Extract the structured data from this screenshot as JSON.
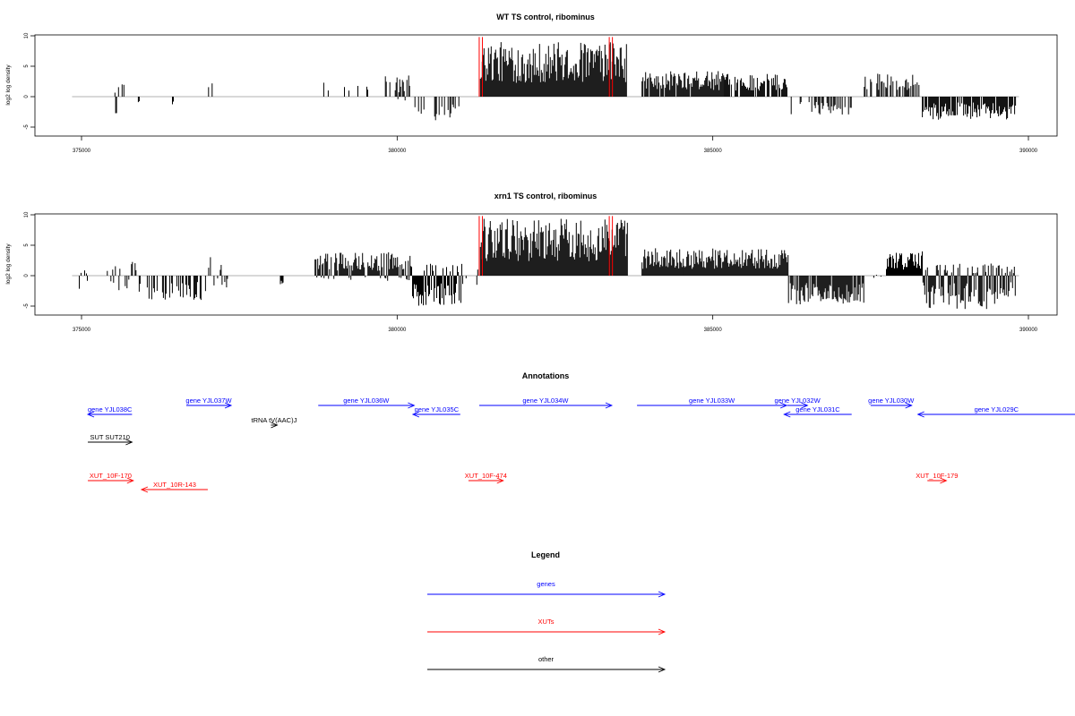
{
  "colors": {
    "genes": "#0000ff",
    "xuts": "#ff0000",
    "other": "#000000",
    "bars": "#000000",
    "marker": "#ff0000",
    "baseline": "#999999"
  },
  "chart_data": [
    {
      "type": "bar",
      "title": "WT TS control, ribominus",
      "ylabel": "log2 log density",
      "xlim": [
        374600,
        390900
      ],
      "ylim": [
        -6,
        10
      ],
      "xticks": [
        375000,
        380000,
        385000,
        390000
      ],
      "yticks": [
        10,
        5,
        0,
        -5
      ],
      "marker_positions": [
        381300,
        381350,
        383360,
        383410
      ],
      "segments": [
        {
          "from": 375530,
          "to": 375690,
          "lo": 0,
          "hi": 2.5,
          "dens": 0.15
        },
        {
          "from": 375540,
          "to": 375560,
          "lo": -2.8,
          "hi": 0,
          "dens": 1
        },
        {
          "from": 375900,
          "to": 375920,
          "lo": -1.2,
          "hi": 0,
          "dens": 1
        },
        {
          "from": 376440,
          "to": 376460,
          "lo": -2.2,
          "hi": 0,
          "dens": 1
        },
        {
          "from": 376970,
          "to": 377370,
          "lo": 0,
          "hi": 2.6,
          "dens": 0.08
        },
        {
          "from": 378780,
          "to": 379080,
          "lo": 0,
          "hi": 3.0,
          "dens": 0.2
        },
        {
          "from": 379080,
          "to": 379800,
          "lo": 0,
          "hi": 2.2,
          "dens": 0.1
        },
        {
          "from": 379800,
          "to": 380230,
          "lo": -1.5,
          "hi": 3.5,
          "dens": 0.4
        },
        {
          "from": 380240,
          "to": 381020,
          "lo": -4.3,
          "hi": 0,
          "dens": 0.35
        },
        {
          "from": 381320,
          "to": 383640,
          "lo": 0,
          "hi": 9,
          "dens": 1
        },
        {
          "from": 383880,
          "to": 385180,
          "lo": 0,
          "hi": 4.2,
          "dens": 0.9
        },
        {
          "from": 385180,
          "to": 386180,
          "lo": 0,
          "hi": 3.8,
          "dens": 0.9
        },
        {
          "from": 386200,
          "to": 387200,
          "lo": -3.0,
          "hi": 0,
          "dens": 0.35
        },
        {
          "from": 387400,
          "to": 388320,
          "lo": 0,
          "hi": 3.8,
          "dens": 0.45
        },
        {
          "from": 388320,
          "to": 389800,
          "lo": -3.8,
          "hi": 0,
          "dens": 0.85
        }
      ]
    },
    {
      "type": "bar",
      "title": "xrn1 TS control, ribominus",
      "ylabel": "log2 log density",
      "xlim": [
        374600,
        390900
      ],
      "ylim": [
        -6,
        10
      ],
      "xticks": [
        375000,
        380000,
        385000,
        390000
      ],
      "yticks": [
        10,
        5,
        0,
        -5
      ],
      "marker_positions": [
        381300,
        381350,
        383360,
        383410
      ],
      "segments": [
        {
          "from": 374950,
          "to": 375100,
          "lo": -2.2,
          "hi": 1.2,
          "dens": 0.2
        },
        {
          "from": 375380,
          "to": 375900,
          "lo": -2.5,
          "hi": 2.8,
          "dens": 0.35
        },
        {
          "from": 375900,
          "to": 377000,
          "lo": -4.0,
          "hi": 0,
          "dens": 0.45
        },
        {
          "from": 377000,
          "to": 377350,
          "lo": -2.3,
          "hi": 3.2,
          "dens": 0.5
        },
        {
          "from": 378150,
          "to": 378200,
          "lo": -2.0,
          "hi": 0,
          "dens": 1
        },
        {
          "from": 378700,
          "to": 380230,
          "lo": -1.0,
          "hi": 4.0,
          "dens": 0.95
        },
        {
          "from": 380230,
          "to": 381050,
          "lo": -5.0,
          "hi": 2.0,
          "dens": 0.95
        },
        {
          "from": 381050,
          "to": 381320,
          "lo": -2.0,
          "hi": 3.5,
          "dens": 0.3
        },
        {
          "from": 381320,
          "to": 383650,
          "lo": 0,
          "hi": 9.5,
          "dens": 1
        },
        {
          "from": 383880,
          "to": 386200,
          "lo": 0,
          "hi": 4.5,
          "dens": 1
        },
        {
          "from": 386200,
          "to": 387400,
          "lo": -4.8,
          "hi": 0,
          "dens": 0.9
        },
        {
          "from": 387550,
          "to": 387700,
          "lo": -0.5,
          "hi": 0.5,
          "dens": 0.3
        },
        {
          "from": 387750,
          "to": 388330,
          "lo": 0,
          "hi": 4.0,
          "dens": 1
        },
        {
          "from": 388330,
          "to": 389800,
          "lo": -5.5,
          "hi": 2.0,
          "dens": 1
        }
      ]
    }
  ],
  "annotations": {
    "title": "Annotations",
    "items": [
      {
        "label": "gene YJL038C",
        "start": 375800,
        "end": 375100,
        "type": "gene",
        "row": 2
      },
      {
        "label": "gene YJL037W",
        "start": 376660,
        "end": 377370,
        "type": "gene",
        "row": 1
      },
      {
        "label": "tRNA tV(AAC)J",
        "start": 378000,
        "end": 378100,
        "type": "other",
        "row": 3
      },
      {
        "label": "gene YJL036W",
        "start": 378750,
        "end": 380270,
        "type": "gene",
        "row": 1
      },
      {
        "label": "gene YJL035C",
        "start": 381000,
        "end": 380250,
        "type": "gene",
        "row": 2
      },
      {
        "label": "gene YJL034W",
        "start": 381300,
        "end": 383400,
        "type": "gene",
        "row": 1
      },
      {
        "label": "gene YJL033W",
        "start": 383800,
        "end": 386170,
        "type": "gene",
        "row": 1
      },
      {
        "label": "gene YJL032W",
        "start": 386180,
        "end": 386500,
        "type": "gene",
        "row": 1
      },
      {
        "label": "gene YJL031C",
        "start": 387200,
        "end": 386130,
        "type": "gene",
        "row": 2
      },
      {
        "label": "gene YJL030W",
        "start": 387500,
        "end": 388150,
        "type": "gene",
        "row": 1
      },
      {
        "label": "gene YJL029C",
        "start": 391000,
        "end": 388250,
        "type": "gene",
        "row": 2
      },
      {
        "label": "SUT SUT210",
        "start": 375100,
        "end": 375800,
        "type": "other",
        "row": 4
      },
      {
        "label": "XUT_10F-170",
        "start": 375100,
        "end": 375820,
        "type": "xut",
        "row": 5
      },
      {
        "label": "XUT_10R-143",
        "start": 377000,
        "end": 375950,
        "type": "xut",
        "row": 6
      },
      {
        "label": "XUT_10F-474",
        "start": 381130,
        "end": 381680,
        "type": "xut",
        "row": 5
      },
      {
        "label": "XUT_10F-179",
        "start": 388400,
        "end": 388700,
        "type": "xut",
        "row": 5
      }
    ]
  },
  "legend": {
    "title": "Legend",
    "items": [
      {
        "label": "genes",
        "type": "gene"
      },
      {
        "label": "XUTs",
        "type": "xut"
      },
      {
        "label": "other",
        "type": "other"
      }
    ]
  }
}
